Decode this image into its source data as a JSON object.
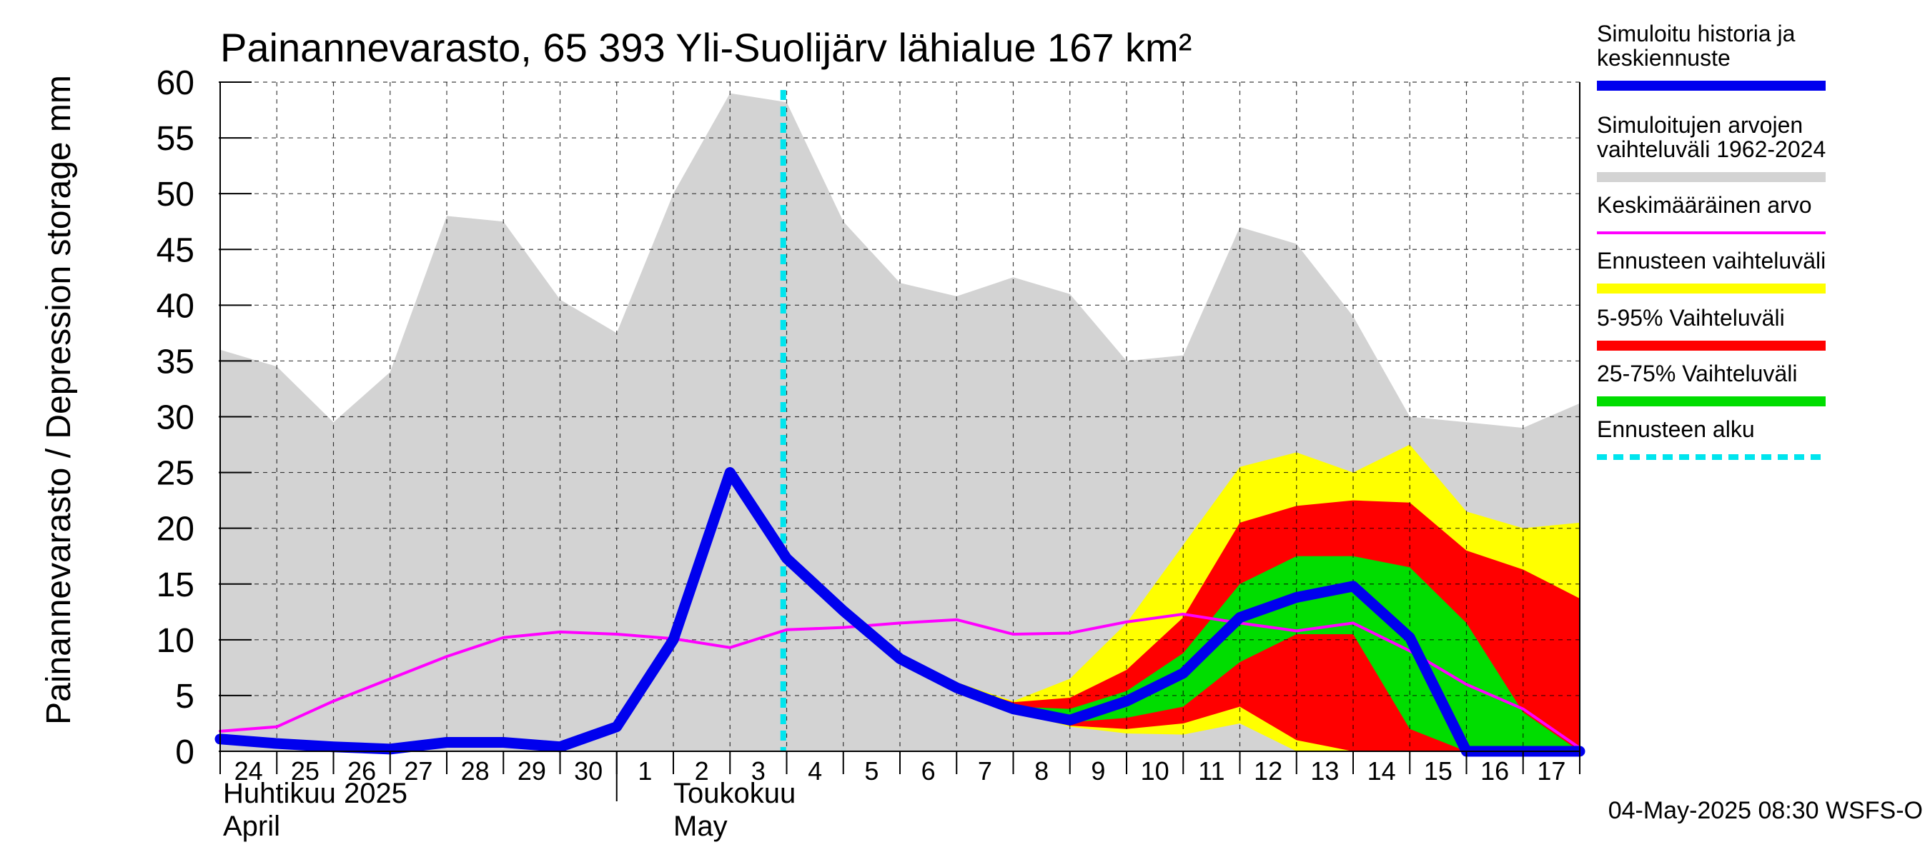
{
  "chart_data": {
    "type": "area",
    "title": "Painannevarasto, 65 393 Yli-Suolijärv lähialue 167 km²",
    "ylabel": "Painannevarasto / Depression storage    mm",
    "ylim": [
      0,
      60
    ],
    "yticks": [
      0,
      5,
      10,
      15,
      20,
      25,
      30,
      35,
      40,
      45,
      50,
      55,
      60
    ],
    "x_dates": [
      "2025-04-24",
      "2025-04-25",
      "2025-04-26",
      "2025-04-27",
      "2025-04-28",
      "2025-04-29",
      "2025-04-30",
      "2025-05-01",
      "2025-05-02",
      "2025-05-03",
      "2025-05-04",
      "2025-05-05",
      "2025-05-06",
      "2025-05-07",
      "2025-05-08",
      "2025-05-09",
      "2025-05-10",
      "2025-05-11",
      "2025-05-12",
      "2025-05-13",
      "2025-05-14",
      "2025-05-15",
      "2025-05-16",
      "2025-05-17",
      "2025-05-18"
    ],
    "tick_labels": [
      "24",
      "25",
      "26",
      "27",
      "28",
      "29",
      "30",
      "1",
      "2",
      "3",
      "4",
      "5",
      "6",
      "7",
      "8",
      "9",
      "10",
      "11",
      "12",
      "13",
      "14",
      "15",
      "16",
      "17"
    ],
    "month_labels": [
      {
        "line1": "Huhtikuu  2025",
        "line2": "April",
        "start_index": 0
      },
      {
        "line1": "Toukokuu",
        "line2": "May",
        "start_index": 7
      }
    ],
    "grid": true,
    "forecast_start_date": "2025-05-04",
    "series": [
      {
        "name": "Simuloitujen arvojen vaihteluväli 1962-2024",
        "kind": "band",
        "color": "#d3d3d3",
        "lower": [
          0,
          0,
          0,
          0,
          0,
          0,
          0,
          0,
          0,
          0,
          0,
          0,
          0,
          0,
          0,
          0,
          0,
          0,
          0,
          0,
          0,
          0,
          0,
          0,
          0
        ],
        "upper": [
          36,
          34.5,
          29.5,
          34,
          48,
          47.5,
          40.5,
          37.5,
          50,
          59,
          58.2,
          47.5,
          42,
          40.8,
          42.5,
          41,
          35,
          35.5,
          47,
          45.5,
          39,
          30,
          29.5,
          29,
          31.2
        ]
      },
      {
        "name": "Ennusteen vaihteluväli",
        "kind": "band",
        "color": "#ffff00",
        "x_start_index": 10,
        "lower": [
          17.3,
          12.5,
          8.2,
          5.5,
          3.6,
          2.2,
          1.6,
          1.5,
          2.5,
          0,
          0,
          0,
          0,
          0,
          0
        ],
        "upper": [
          17.3,
          12.8,
          8.7,
          6.2,
          4.5,
          6.5,
          11.5,
          18.5,
          25.5,
          26.8,
          25,
          27.5,
          21.5,
          20,
          20.5
        ]
      },
      {
        "name": "5-95% Vaihteluväli",
        "kind": "band",
        "color": "#ff0000",
        "x_start_index": 10,
        "lower": [
          17.3,
          12.5,
          8.3,
          5.6,
          3.7,
          2.3,
          2,
          2.5,
          4,
          1,
          0,
          0,
          0,
          0,
          0
        ],
        "upper": [
          17.3,
          12.7,
          8.5,
          5.9,
          4.4,
          4.8,
          7.3,
          12,
          20.5,
          22,
          22.5,
          22.3,
          18,
          16.3,
          13.7
        ]
      },
      {
        "name": "25-75% Vaihteluväli",
        "kind": "band",
        "color": "#00dd00",
        "x_start_index": 10,
        "lower": [
          17.3,
          12.6,
          8.3,
          5.7,
          3.8,
          2.6,
          3,
          4,
          8,
          10.5,
          10.5,
          2,
          0,
          0,
          0
        ],
        "upper": [
          17.3,
          12.6,
          8.4,
          5.8,
          4.0,
          3.8,
          5.4,
          8.8,
          15,
          17.5,
          17.5,
          16.5,
          11.5,
          3.5,
          0
        ]
      },
      {
        "name": "Keskimääräinen arvo",
        "kind": "line",
        "color": "#ff00ff",
        "values": [
          1.8,
          2.2,
          4.5,
          6.5,
          8.5,
          10.2,
          10.7,
          10.5,
          10.1,
          9.3,
          10.9,
          11.1,
          11.5,
          11.8,
          10.5,
          10.6,
          11.6,
          12.3,
          11.5,
          10.8,
          11.5,
          9,
          6,
          3.8,
          0.3
        ]
      },
      {
        "name": "Simuloitu historia ja keskiennuste",
        "kind": "line",
        "color": "#0000ee",
        "values": [
          1.1,
          0.7,
          0.4,
          0.2,
          0.8,
          0.8,
          0.4,
          2.2,
          10,
          25,
          17.3,
          12.6,
          8.3,
          5.7,
          3.8,
          2.8,
          4.5,
          7,
          12,
          13.8,
          14.8,
          10.2,
          0,
          0,
          0
        ]
      }
    ],
    "legend": {
      "placement": "right",
      "entries": [
        {
          "label": "Simuloitu historia ja keskiennuste",
          "color": "#0000ee",
          "style": "thick"
        },
        {
          "label": "Simuloitujen arvojen vaihteluväli 1962-2024",
          "color": "#d3d3d3",
          "style": "thick"
        },
        {
          "label": "Keskimääräinen arvo",
          "color": "#ff00ff",
          "style": "thin"
        },
        {
          "label": "Ennusteen vaihteluväli",
          "color": "#ffff00",
          "style": "thick"
        },
        {
          "label": "5-95% Vaihteluväli",
          "color": "#ff0000",
          "style": "thick"
        },
        {
          "label": "25-75% Vaihteluväli",
          "color": "#00dd00",
          "style": "thick"
        },
        {
          "label": "Ennusteen alku",
          "color": "#00e5ee",
          "style": "dashed"
        }
      ]
    },
    "timestamp": "04-May-2025 08:30 WSFS-O"
  }
}
